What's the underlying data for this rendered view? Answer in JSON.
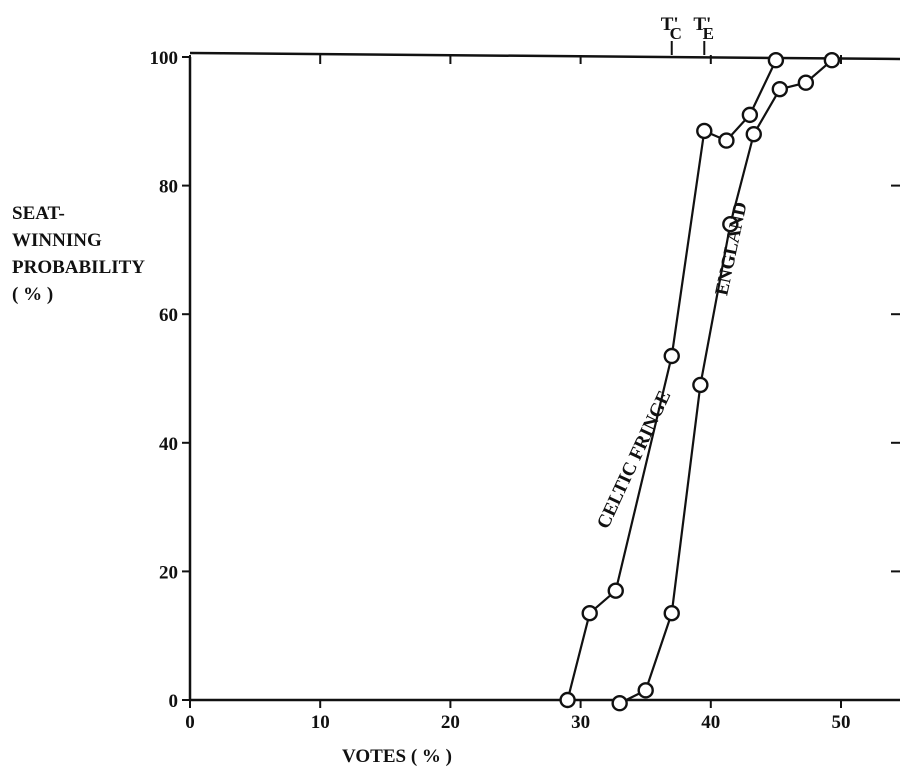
{
  "chart_data": {
    "type": "line",
    "xlabel": "VOTES ( % )",
    "ylabel": [
      "SEAT-",
      "WINNING",
      "PROBABILITY",
      "( % )"
    ],
    "xlim": [
      0,
      55
    ],
    "ylim": [
      0,
      100
    ],
    "x_ticks": [
      0,
      10,
      20,
      30,
      40,
      50
    ],
    "y_ticks": [
      0,
      20,
      40,
      60,
      80,
      100
    ],
    "top_markers": [
      {
        "x": 37.0,
        "label": "T'",
        "sub": "C"
      },
      {
        "x": 39.5,
        "label": "T'",
        "sub": "E"
      }
    ],
    "series": [
      {
        "name": "CELTIC FRINGE",
        "points": [
          [
            29.0,
            0
          ],
          [
            30.7,
            13.5
          ],
          [
            32.7,
            17
          ],
          [
            37.0,
            53.5
          ],
          [
            39.5,
            88.5
          ],
          [
            41.2,
            87
          ],
          [
            43.0,
            91
          ],
          [
            45.0,
            99.5
          ]
        ]
      },
      {
        "name": "ENGLAND",
        "points": [
          [
            33.0,
            -0.5
          ],
          [
            35.0,
            1.5
          ],
          [
            37.0,
            13.5
          ],
          [
            39.2,
            49
          ],
          [
            41.5,
            74
          ],
          [
            43.3,
            88
          ],
          [
            45.3,
            95
          ],
          [
            47.3,
            96
          ],
          [
            49.3,
            99.5
          ]
        ]
      }
    ],
    "annotations": [
      {
        "text": "CELTIC FRINGE",
        "x": 34.5,
        "y": 37,
        "angle": -65
      },
      {
        "text": "ENGLAND",
        "x": 42.0,
        "y": 70,
        "angle": -78
      }
    ],
    "grid": false
  }
}
